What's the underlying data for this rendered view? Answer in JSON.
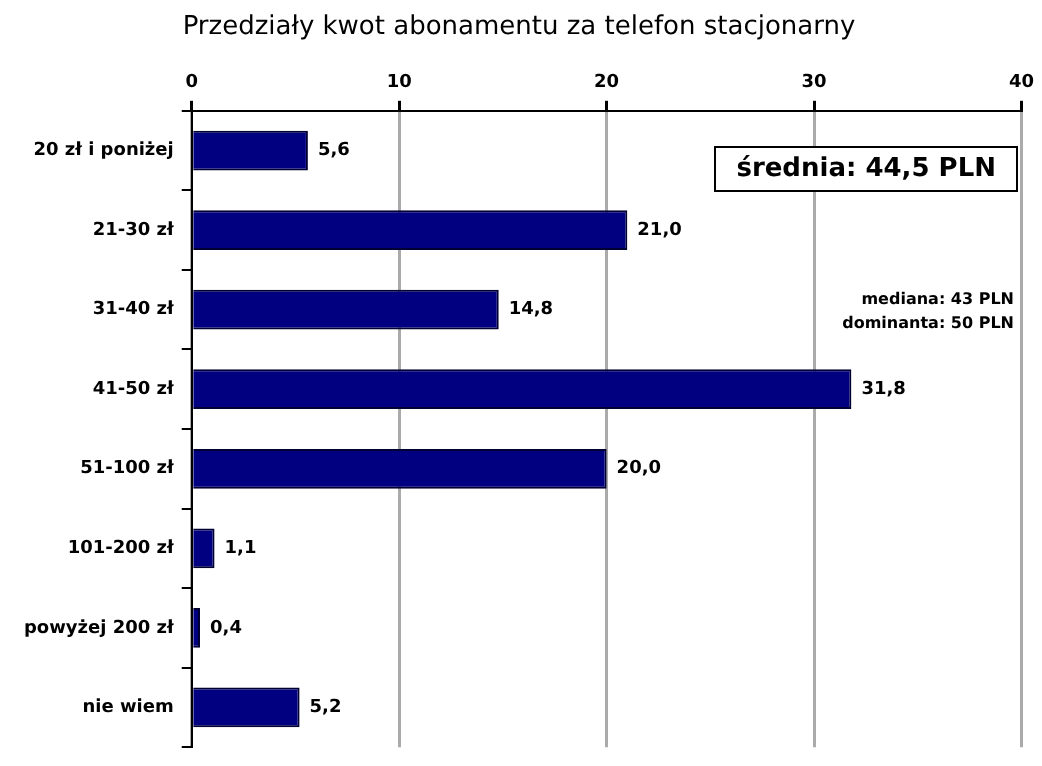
{
  "chart_data": {
    "type": "bar",
    "orientation": "horizontal",
    "title": "Przedziały kwot abonamentu za telefon stacjonarny",
    "categories": [
      "20 zł i poniżej",
      "21-30 zł",
      "31-40 zł",
      "41-50 zł",
      "51-100 zł",
      "101-200 zł",
      "powyżej 200 zł",
      "nie wiem"
    ],
    "values": [
      5.6,
      21.0,
      14.8,
      31.8,
      20.0,
      1.1,
      0.4,
      5.2
    ],
    "value_labels": [
      "5,6",
      "21,0",
      "14,8",
      "31,8",
      "20,0",
      "1,1",
      "0,4",
      "5,2"
    ],
    "color": "#000080",
    "xlim": [
      0,
      40
    ],
    "xticks": [
      0,
      10,
      20,
      30,
      40
    ],
    "grid": "x",
    "legend": false,
    "annotations": [
      "średnia: 44,5 PLN",
      "mediana: 43 PLN",
      "dominanta: 50 PLN"
    ]
  }
}
